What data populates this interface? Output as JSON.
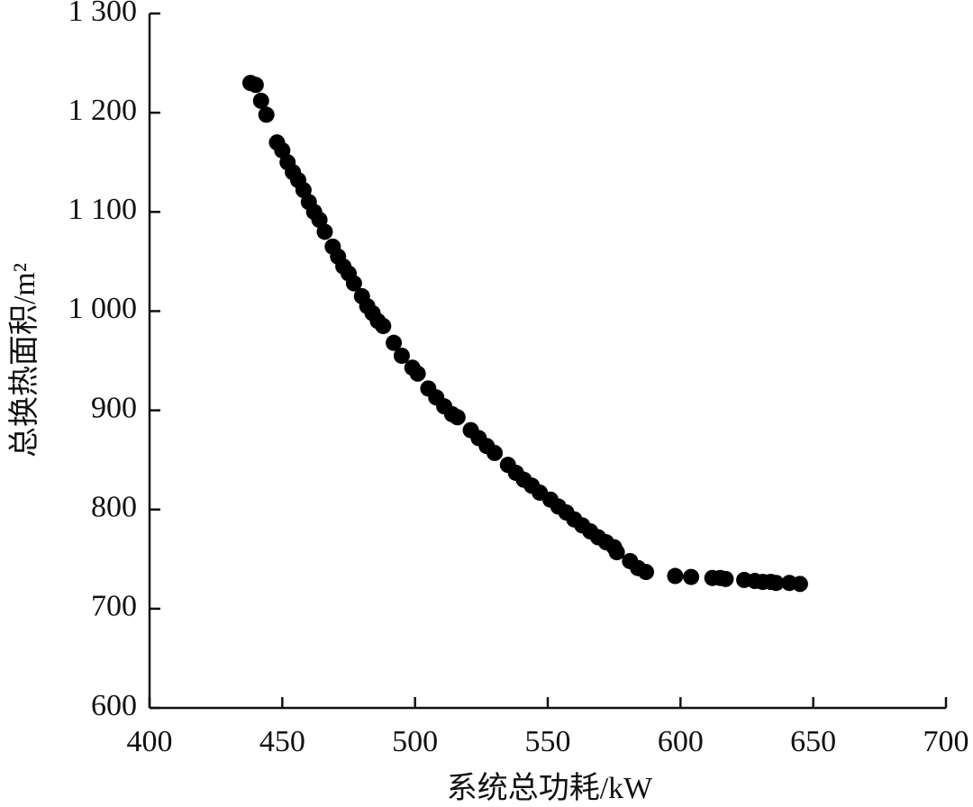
{
  "chart_data": {
    "type": "scatter",
    "xlabel": "系统总功耗/kW",
    "ylabel": "总换热面积/m²",
    "color": "#000000",
    "xlim": [
      400,
      700
    ],
    "ylim": [
      600,
      1300
    ],
    "xticks": [
      400,
      450,
      500,
      550,
      600,
      650,
      700
    ],
    "yticks": [
      600,
      700,
      800,
      900,
      {
        "value": 1000,
        "label": "1 000"
      },
      {
        "value": 1100,
        "label": "1 100"
      },
      {
        "value": 1200,
        "label": "1 200"
      },
      {
        "value": 1300,
        "label": "1 300"
      }
    ],
    "x": [
      438,
      440,
      442,
      444,
      448,
      450,
      452,
      454,
      456,
      458,
      460,
      462,
      464,
      466,
      469,
      471,
      473,
      475,
      477,
      480,
      482,
      484,
      486,
      488,
      492,
      495,
      499,
      501,
      505,
      508,
      511,
      514,
      516,
      521,
      524,
      527,
      530,
      535,
      538,
      541,
      544,
      547,
      551,
      554,
      557,
      560,
      563,
      566,
      569,
      572,
      575,
      576,
      581,
      584,
      587,
      598,
      604,
      612,
      615,
      617,
      624,
      628,
      631,
      634,
      636,
      641,
      645
    ],
    "values": [
      1230,
      1228,
      1212,
      1198,
      1170,
      1162,
      1150,
      1140,
      1132,
      1122,
      1110,
      1100,
      1092,
      1080,
      1065,
      1055,
      1045,
      1038,
      1028,
      1015,
      1005,
      998,
      990,
      985,
      968,
      955,
      943,
      937,
      922,
      913,
      904,
      896,
      893,
      880,
      872,
      864,
      857,
      845,
      837,
      830,
      824,
      817,
      810,
      803,
      797,
      790,
      784,
      778,
      772,
      767,
      762,
      757,
      748,
      741,
      737,
      733,
      732,
      731,
      731,
      730,
      729,
      728,
      727,
      727,
      726,
      726,
      725
    ]
  }
}
